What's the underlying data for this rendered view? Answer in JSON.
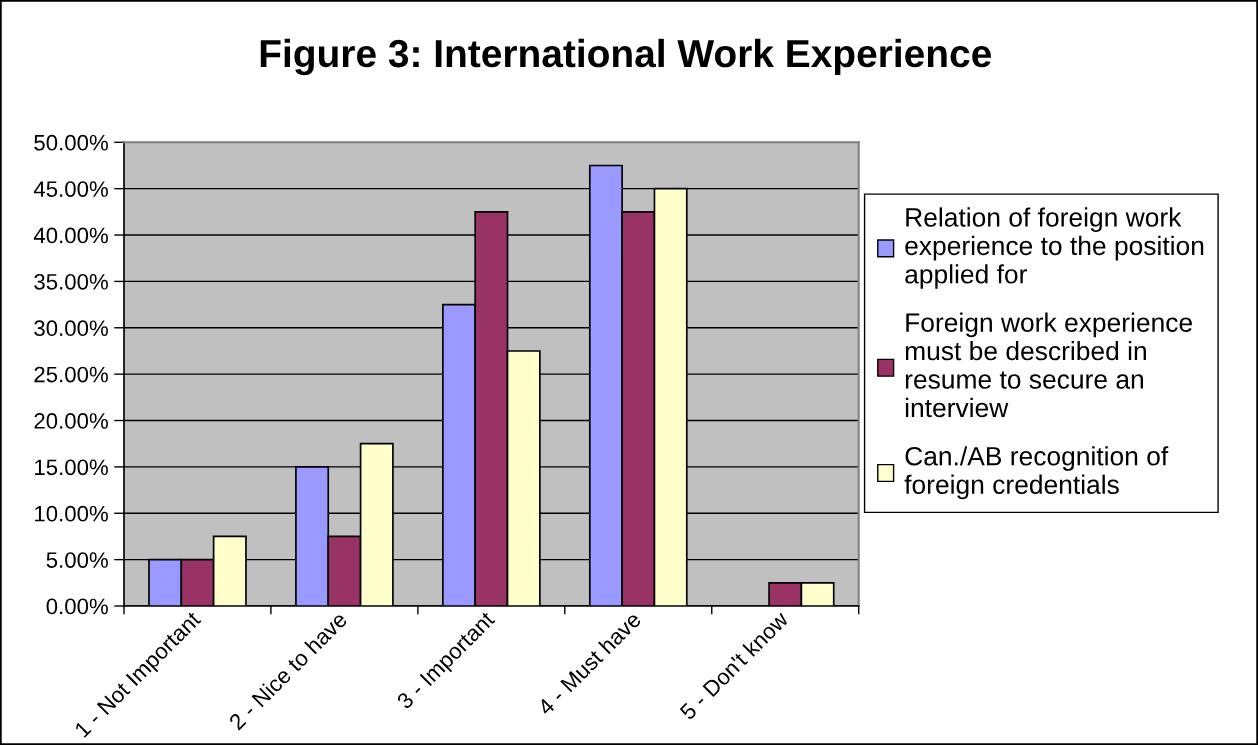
{
  "chart_data": {
    "type": "bar",
    "title": "Figure 3: International Work Experience",
    "categories": [
      "1 - Not Important",
      "2 - Nice to have",
      "3 - Important",
      "4 - Must have",
      "5 - Don't know"
    ],
    "series": [
      {
        "name": "Relation of foreign work\nexperience to the position\napplied for",
        "color": "#9999ff",
        "values": [
          5,
          15,
          32.5,
          47.5,
          null
        ]
      },
      {
        "name": "Foreign work experience\nmust be described in\nresume to secure an\ninterview",
        "color": "#993366",
        "values": [
          5,
          7.5,
          42.5,
          42.5,
          2.5
        ]
      },
      {
        "name": "Can./AB recognition of\nforeign credentials",
        "color": "#ffffcc",
        "values": [
          7.5,
          17.5,
          27.5,
          45,
          2.5
        ]
      }
    ],
    "ylim": [
      0,
      50
    ],
    "yticks": [
      {
        "value": 0,
        "label": "0.00%"
      },
      {
        "value": 5,
        "label": "5.00%"
      },
      {
        "value": 10,
        "label": "10.00%"
      },
      {
        "value": 15,
        "label": "15.00%"
      },
      {
        "value": 20,
        "label": "20.00%"
      },
      {
        "value": 25,
        "label": "25.00%"
      },
      {
        "value": 30,
        "label": "30.00%"
      },
      {
        "value": 35,
        "label": "35.00%"
      },
      {
        "value": 40,
        "label": "40.00%"
      },
      {
        "value": 45,
        "label": "45.00%"
      },
      {
        "value": 50,
        "label": "50.00%"
      }
    ],
    "grid": "y",
    "legend": "right"
  }
}
